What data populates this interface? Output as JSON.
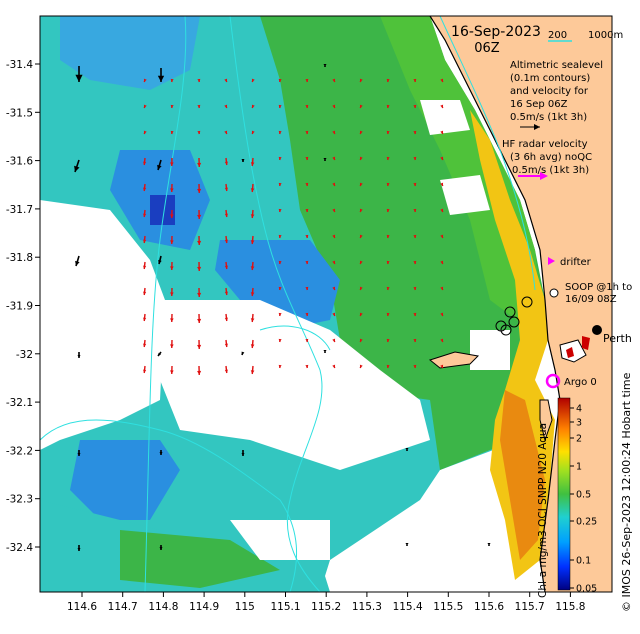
{
  "map": {
    "date": "16-Sep-2023",
    "time": "06Z",
    "bathy_legend": {
      "c200": "200",
      "c1000": "1000m"
    },
    "altimetry_legend": [
      "Altimetric sealevel",
      "(0.1m contours)",
      "and velocity for",
      "16 Sep 06Z",
      "0.5m/s (1kt 3h)"
    ],
    "hf_radar_legend": [
      "HF radar velocity",
      "(3 6h avg) noQC",
      "0.5m/s (1kt 3h)"
    ],
    "drifter_label": "drifter",
    "soop_legend": [
      "SOOP @1h to",
      "16/09 08Z"
    ],
    "perth_label": "Perth",
    "argo_label": "Argo 0",
    "side_label": "© IMOS 26-Sep-2023 12:00:24 Hobart time",
    "colorbar_label": "Chl-a mg/m3 OCI SNPP N20 Aqua",
    "colorbar_ticks": [
      "4",
      "3",
      "2",
      "1",
      "0.5",
      "0.25",
      "0.1",
      "0.05"
    ],
    "lon_ticks": [
      "114.6",
      "114.7",
      "114.8",
      "114.9",
      "115",
      "115.1",
      "115.2",
      "115.3",
      "115.4",
      "115.5",
      "115.6",
      "115.7",
      "115.8"
    ],
    "lat_ticks": [
      "-31.4",
      "-31.5",
      "-31.6",
      "-31.7",
      "-31.8",
      "-31.9",
      "-32",
      "-32.1",
      "-32.2",
      "-32.3",
      "-32.4"
    ],
    "colors": {
      "land": "#fdc999",
      "nodata": "#ffffff",
      "blue": "#2a8fe0",
      "cyan": "#33c6c0",
      "green": "#39b54a",
      "yellow": "#f2c514",
      "orange": "#e98a10",
      "contour": "#2fe0e0",
      "altimetry_arrow": "#000000",
      "hf_arrow": "#e01010",
      "drifter": "#ff00ff"
    }
  }
}
